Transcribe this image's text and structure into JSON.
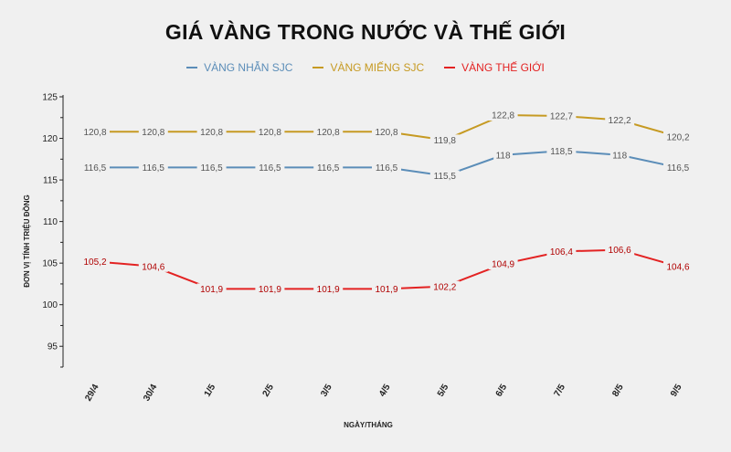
{
  "chart_data": {
    "type": "line",
    "title": "GIÁ VÀNG TRONG NƯỚC VÀ THẾ GIỚI",
    "xlabel": "NGÀY/THÁNG",
    "ylabel": "ĐƠN VỊ TÍNH TRIỆU ĐỒNG",
    "categories": [
      "29/4",
      "30/4",
      "1/5",
      "2/5",
      "3/5",
      "4/5",
      "5/5",
      "6/5",
      "7/5",
      "8/5",
      "9/5"
    ],
    "ylim": [
      92.5,
      125
    ],
    "yticks": [
      95,
      100,
      105,
      110,
      115,
      120,
      125
    ],
    "grid": false,
    "legend_position": "top-center",
    "series": [
      {
        "name": "VÀNG NHẪN SJC",
        "color": "#5b8db8",
        "values": [
          116.5,
          116.5,
          116.5,
          116.5,
          116.5,
          116.5,
          115.5,
          118,
          118.5,
          118,
          116.5
        ],
        "labels": [
          "116,5",
          "116,5",
          "116,5",
          "116,5",
          "116,5",
          "116,5",
          "115,5",
          "118",
          "118,5",
          "118",
          "116,5"
        ]
      },
      {
        "name": "VÀNG MIẾNG SJC",
        "color": "#c69a22",
        "values": [
          120.8,
          120.8,
          120.8,
          120.8,
          120.8,
          120.8,
          119.8,
          122.8,
          122.7,
          122.2,
          120.2
        ],
        "labels": [
          "120,8",
          "120,8",
          "120,8",
          "120,8",
          "120,8",
          "120,8",
          "119,8",
          "122,8",
          "122,7",
          "122,2",
          "120,2"
        ]
      },
      {
        "name": "VÀNG THẾ GIỚI",
        "color": "#e32222",
        "values": [
          105.2,
          104.6,
          101.9,
          101.9,
          101.9,
          101.9,
          102.2,
          104.9,
          106.4,
          106.6,
          104.6
        ],
        "labels": [
          "105,2",
          "104,6",
          "101,9",
          "101,9",
          "101,9",
          "101,9",
          "102,2",
          "104,9",
          "106,4",
          "106,6",
          "104,6"
        ]
      }
    ]
  }
}
